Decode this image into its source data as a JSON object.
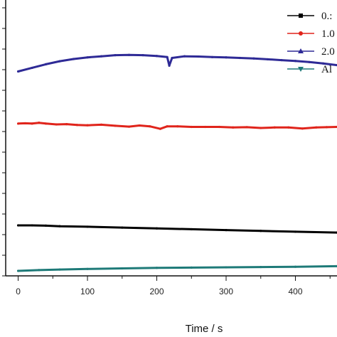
{
  "chart_data": {
    "type": "line",
    "title": "",
    "xlabel": "Time / s",
    "ylabel": "",
    "xlim": [
      -18,
      460
    ],
    "ylim": [
      0,
      1
    ],
    "x_ticks": [
      0,
      100,
      200,
      300,
      400
    ],
    "x_tick_labels": [
      "0",
      "100",
      "200",
      "300",
      "400"
    ],
    "grid": false,
    "legend_position": "top-right",
    "series": [
      {
        "name": "0.:",
        "color": "#000000",
        "marker": "square",
        "x": [
          0,
          20,
          40,
          60,
          100,
          150,
          200,
          250,
          300,
          350,
          400,
          460
        ],
        "y": [
          0.183,
          0.183,
          0.182,
          0.18,
          0.178,
          0.175,
          0.172,
          0.169,
          0.166,
          0.163,
          0.16,
          0.157
        ]
      },
      {
        "name": "1.0",
        "color": "#e0241b",
        "marker": "circle",
        "x": [
          0,
          10,
          20,
          30,
          40,
          55,
          70,
          85,
          100,
          120,
          140,
          160,
          175,
          190,
          205,
          215,
          230,
          250,
          270,
          290,
          310,
          330,
          350,
          370,
          390,
          410,
          430,
          445,
          460
        ],
        "y": [
          0.552,
          0.553,
          0.552,
          0.555,
          0.552,
          0.549,
          0.55,
          0.547,
          0.546,
          0.548,
          0.544,
          0.541,
          0.545,
          0.542,
          0.533,
          0.542,
          0.542,
          0.54,
          0.54,
          0.54,
          0.538,
          0.539,
          0.536,
          0.538,
          0.538,
          0.534,
          0.538,
          0.539,
          0.54
        ]
      },
      {
        "name": "2.0",
        "color": "#2e2a96",
        "marker": "triangle",
        "x": [
          0,
          20,
          40,
          60,
          80,
          100,
          120,
          140,
          160,
          180,
          200,
          215,
          218,
          222,
          240,
          260,
          280,
          300,
          320,
          340,
          360,
          380,
          400,
          420,
          440,
          460
        ],
        "y": [
          0.741,
          0.754,
          0.767,
          0.778,
          0.786,
          0.792,
          0.796,
          0.8,
          0.801,
          0.8,
          0.797,
          0.793,
          0.762,
          0.79,
          0.796,
          0.795,
          0.793,
          0.792,
          0.79,
          0.788,
          0.785,
          0.782,
          0.779,
          0.775,
          0.77,
          0.764
        ]
      },
      {
        "name": "Al",
        "color": "#1e7a78",
        "marker": "triangle-down",
        "x": [
          0,
          30,
          60,
          100,
          150,
          200,
          250,
          300,
          350,
          400,
          460
        ],
        "y": [
          0.018,
          0.021,
          0.023,
          0.025,
          0.027,
          0.029,
          0.03,
          0.031,
          0.032,
          0.033,
          0.035
        ]
      }
    ]
  }
}
